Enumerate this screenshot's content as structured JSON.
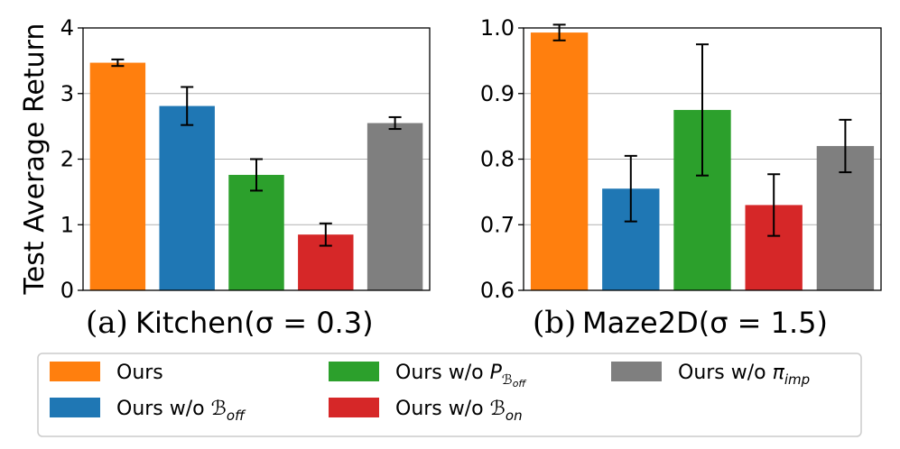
{
  "chart_data": [
    {
      "type": "bar",
      "panel": "a",
      "caption_prefix": "(a)",
      "caption": "Kitchen(σ = 0.3)",
      "ylabel": "Test Average Return",
      "ylim": [
        0,
        4
      ],
      "yticks": [
        0,
        1,
        2,
        3,
        4
      ],
      "ytick_labels": [
        "0",
        "1",
        "2",
        "3",
        "4"
      ],
      "grid": "horizontal",
      "categories": [
        "Ours",
        "Ours w/o B_off",
        "Ours w/o P_B_off",
        "Ours w/o B_on",
        "Ours w/o π_imp"
      ],
      "values": [
        3.47,
        2.81,
        1.76,
        0.85,
        2.55
      ],
      "errors": [
        0.05,
        0.29,
        0.24,
        0.17,
        0.09
      ]
    },
    {
      "type": "bar",
      "panel": "b",
      "caption_prefix": "(b)",
      "caption": "Maze2D(σ = 1.5)",
      "ylabel": "",
      "ylim": [
        0.6,
        1.0
      ],
      "yticks": [
        0.6,
        0.7,
        0.8,
        0.9,
        1.0
      ],
      "ytick_labels": [
        "0.6",
        "0.7",
        "0.8",
        "0.9",
        "1.0"
      ],
      "grid": "horizontal",
      "categories": [
        "Ours",
        "Ours w/o B_off",
        "Ours w/o P_B_off",
        "Ours w/o B_on",
        "Ours w/o π_imp"
      ],
      "values": [
        0.993,
        0.755,
        0.875,
        0.73,
        0.82
      ],
      "errors": [
        0.012,
        0.05,
        0.1,
        0.047,
        0.04
      ]
    }
  ],
  "legend": {
    "position": "bottom",
    "items": [
      {
        "base": "Ours",
        "sym": "",
        "sub": "",
        "subsub": "",
        "color": "#ff7f0e"
      },
      {
        "base": "Ours w/o ",
        "sym": "ℬ",
        "sub": "off",
        "subsub": "",
        "color": "#1f77b4"
      },
      {
        "base": "Ours w/o ",
        "sym": "P",
        "sub": "ℬ",
        "subsub": "off",
        "color": "#2ca02c"
      },
      {
        "base": "Ours w/o ",
        "sym": "ℬ",
        "sub": "on",
        "subsub": "",
        "color": "#d62728"
      },
      {
        "base": "Ours w/o ",
        "sym": "π",
        "sub": "imp",
        "subsub": "",
        "color": "#7f7f7f"
      }
    ]
  },
  "colors": [
    "#ff7f0e",
    "#1f77b4",
    "#2ca02c",
    "#d62728",
    "#7f7f7f"
  ]
}
